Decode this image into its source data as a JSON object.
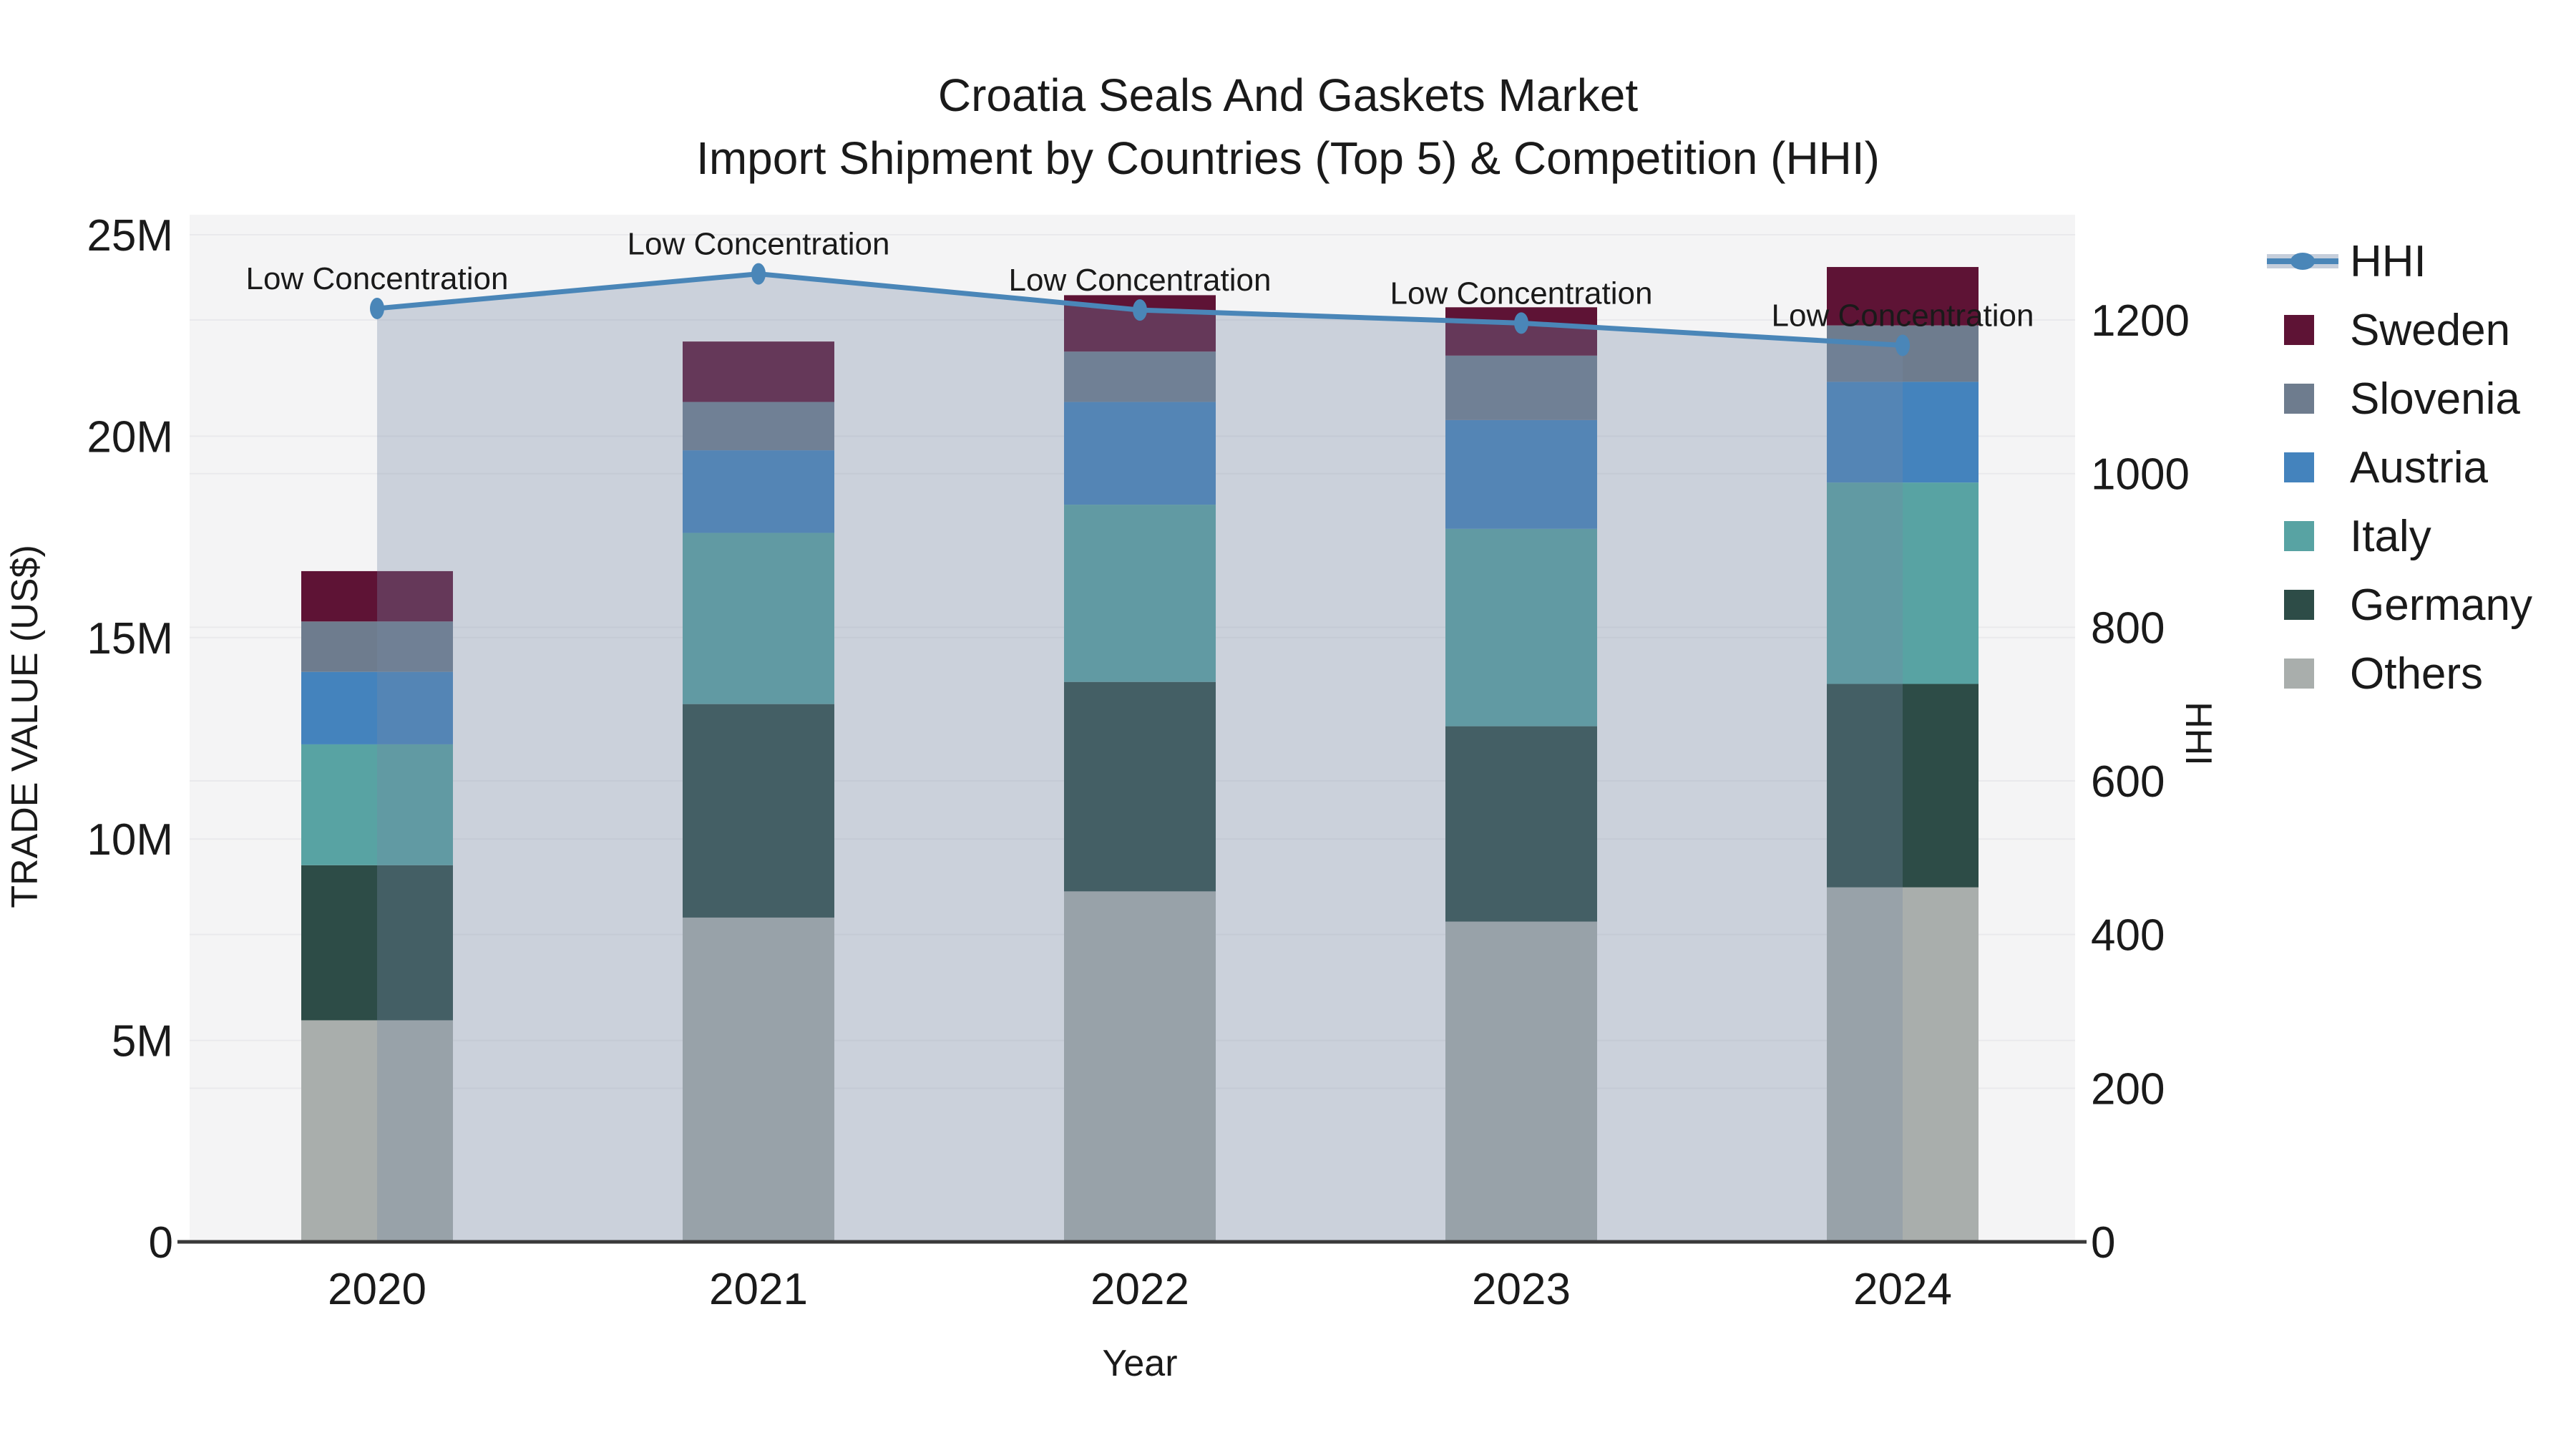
{
  "chart_data": {
    "type": "bar+line",
    "title_line1": "Croatia Seals And Gaskets Market",
    "title_line2": "Import Shipment by Countries (Top 5) & Competition (HHI)",
    "xlabel": "Year",
    "ylabel_left": "TRADE VALUE (US$)",
    "ylabel_right": "HHI",
    "categories": [
      "2020",
      "2021",
      "2022",
      "2023",
      "2024"
    ],
    "stack_series_bottom_to_top": [
      {
        "name": "Others",
        "color": "#a9aeac",
        "values_musd": [
          5.5,
          8.05,
          8.7,
          7.95,
          8.8
        ]
      },
      {
        "name": "Germany",
        "color": "#2d4c47",
        "values_musd": [
          3.85,
          5.3,
          5.2,
          4.85,
          5.05
        ]
      },
      {
        "name": "Italy",
        "color": "#58a3a3",
        "values_musd": [
          3.0,
          4.25,
          4.4,
          4.9,
          5.0
        ]
      },
      {
        "name": "Austria",
        "color": "#4483bd",
        "values_musd": [
          1.8,
          2.05,
          2.55,
          2.7,
          2.5
        ]
      },
      {
        "name": "Slovenia",
        "color": "#6e7c8e",
        "values_musd": [
          1.25,
          1.2,
          1.25,
          1.6,
          1.4
        ]
      },
      {
        "name": "Sweden",
        "color": "#5e1335",
        "values_musd": [
          1.25,
          1.5,
          1.4,
          1.2,
          1.45
        ]
      }
    ],
    "line_series": {
      "name": "HHI",
      "color": "#4a86b8",
      "area_fill": "rgba(117,136,164,0.32)",
      "values": [
        1215,
        1260,
        1213,
        1196,
        1167
      ]
    },
    "annotations": [
      "Low Concentration",
      "Low Concentration",
      "Low Concentration",
      "Low Concentration",
      "Low Concentration"
    ],
    "left_axis": {
      "tick_labels": [
        "0",
        "5M",
        "10M",
        "15M",
        "20M",
        "25M"
      ],
      "tick_values_musd": [
        0,
        5,
        10,
        15,
        20,
        25
      ]
    },
    "right_axis": {
      "tick_labels": [
        "0",
        "200",
        "400",
        "600",
        "800",
        "1000",
        "1200"
      ],
      "tick_values": [
        0,
        200,
        400,
        600,
        800,
        1000,
        1200
      ]
    },
    "legend_top_to_bottom": [
      "HHI",
      "Sweden",
      "Slovenia",
      "Austria",
      "Italy",
      "Germany",
      "Others"
    ],
    "grid": "on",
    "legend_position": "right",
    "plot_bg": "#f4f4f5",
    "axis_line_color": "#3a3a3a",
    "gridline_color": "#e9e9ec"
  }
}
